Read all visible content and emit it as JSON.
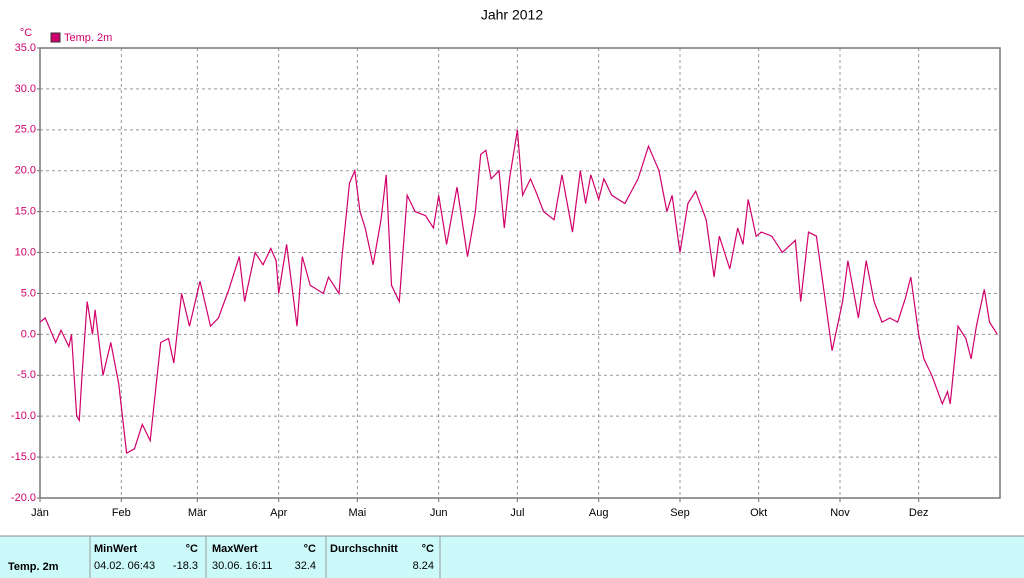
{
  "chart_data": {
    "type": "line",
    "title": "Jahr 2012",
    "y_label": "°C",
    "x": [
      0,
      2,
      4,
      6,
      8,
      11,
      12,
      14,
      15,
      16,
      18,
      20,
      21,
      24,
      27,
      30,
      33,
      36,
      39,
      42,
      46,
      49,
      51,
      54,
      57,
      61,
      65,
      68,
      72,
      76,
      78,
      82,
      85,
      88,
      90,
      91,
      94,
      98,
      100,
      103,
      108,
      110,
      114,
      115,
      118,
      120,
      122,
      124,
      127,
      130,
      132,
      134,
      137,
      140,
      143,
      147,
      150,
      152,
      155,
      159,
      163,
      166,
      168,
      170,
      172,
      175,
      177,
      179,
      182,
      184,
      187,
      189,
      192,
      196,
      199,
      203,
      206,
      208,
      210,
      213,
      215,
      218,
      223,
      228,
      232,
      236,
      239,
      241,
      244,
      247,
      250,
      254,
      257,
      259,
      263,
      266,
      268,
      270,
      273,
      275,
      279,
      283,
      288,
      290,
      293,
      296,
      299,
      302,
      306,
      308,
      312,
      315,
      318,
      321,
      324,
      327,
      330,
      332,
      335,
      337,
      340,
      344,
      346,
      347,
      350,
      353,
      355,
      357,
      358,
      360,
      362,
      365
    ],
    "series": [
      {
        "name": "Temp. 2m",
        "color": "#d0006b",
        "values": [
          1.5,
          2,
          0.5,
          -1,
          0.5,
          -1.5,
          0,
          -10,
          -10.5,
          -5,
          4,
          0,
          3,
          -5,
          -1,
          -6,
          -14.5,
          -14,
          -11,
          -13,
          -1,
          -0.5,
          -3.5,
          5,
          1,
          6.5,
          1,
          2,
          5.5,
          9.5,
          4,
          10,
          8.5,
          10.5,
          9,
          5,
          11,
          1,
          9.5,
          6,
          5,
          7,
          5,
          9,
          18.5,
          20,
          15,
          13,
          8.5,
          14,
          19.5,
          6,
          4,
          17,
          15,
          14.5,
          13,
          17,
          11,
          18,
          9.5,
          15,
          22,
          22.5,
          19,
          20,
          13,
          19,
          25,
          17,
          19,
          17.5,
          15,
          14,
          19.5,
          12.5,
          20,
          16,
          19.5,
          16.5,
          19,
          17,
          16,
          19,
          23,
          20,
          15,
          17,
          10,
          16,
          17.5,
          14,
          7,
          12,
          8,
          13,
          11,
          16.5,
          12,
          12.5,
          12,
          10,
          11.5,
          4,
          12.5,
          12,
          5,
          -2,
          4,
          9,
          2,
          9,
          4,
          1.5,
          2,
          1.5,
          4.5,
          7,
          0,
          -3,
          -5,
          -8.5,
          -7,
          -8.5,
          1,
          -0.5,
          -3,
          1,
          2.5,
          5.5,
          1.5,
          0
        ]
      }
    ],
    "xlim": [
      0,
      366
    ],
    "xticks": [
      {
        "value": 0,
        "label": "Jän"
      },
      {
        "value": 31,
        "label": "Feb"
      },
      {
        "value": 60,
        "label": "Mär"
      },
      {
        "value": 91,
        "label": "Apr"
      },
      {
        "value": 121,
        "label": "Mai"
      },
      {
        "value": 152,
        "label": "Jun"
      },
      {
        "value": 182,
        "label": "Jul"
      },
      {
        "value": 213,
        "label": "Aug"
      },
      {
        "value": 244,
        "label": "Sep"
      },
      {
        "value": 274,
        "label": "Okt"
      },
      {
        "value": 305,
        "label": "Nov"
      },
      {
        "value": 335,
        "label": "Dez"
      }
    ],
    "ylim": [
      -20,
      35
    ],
    "yticks": [
      {
        "value": 35,
        "label": "35.0"
      },
      {
        "value": 30,
        "label": "30.0"
      },
      {
        "value": 25,
        "label": "25.0"
      },
      {
        "value": 20,
        "label": "20.0"
      },
      {
        "value": 15,
        "label": "15.0"
      },
      {
        "value": 10,
        "label": "10.0"
      },
      {
        "value": 5,
        "label": "5.0"
      },
      {
        "value": 0,
        "label": "0.0"
      },
      {
        "value": -5,
        "label": "-5.0"
      },
      {
        "value": -10,
        "label": "-10.0"
      },
      {
        "value": -15,
        "label": "-15.0"
      },
      {
        "value": -20,
        "label": "-20.0"
      }
    ],
    "grid": true,
    "legend": "top-left"
  },
  "stats": {
    "row_label": "Temp. 2m",
    "columns": [
      {
        "header": "MinWert",
        "unit": "°C",
        "date": "04.02.  06:43",
        "value": "-18.3"
      },
      {
        "header": "MaxWert",
        "unit": "°C",
        "date": "30.06.  16:11",
        "value": "32.4"
      },
      {
        "header": "Durchschnitt",
        "unit": "°C",
        "date": "",
        "value": "8.24"
      }
    ]
  }
}
